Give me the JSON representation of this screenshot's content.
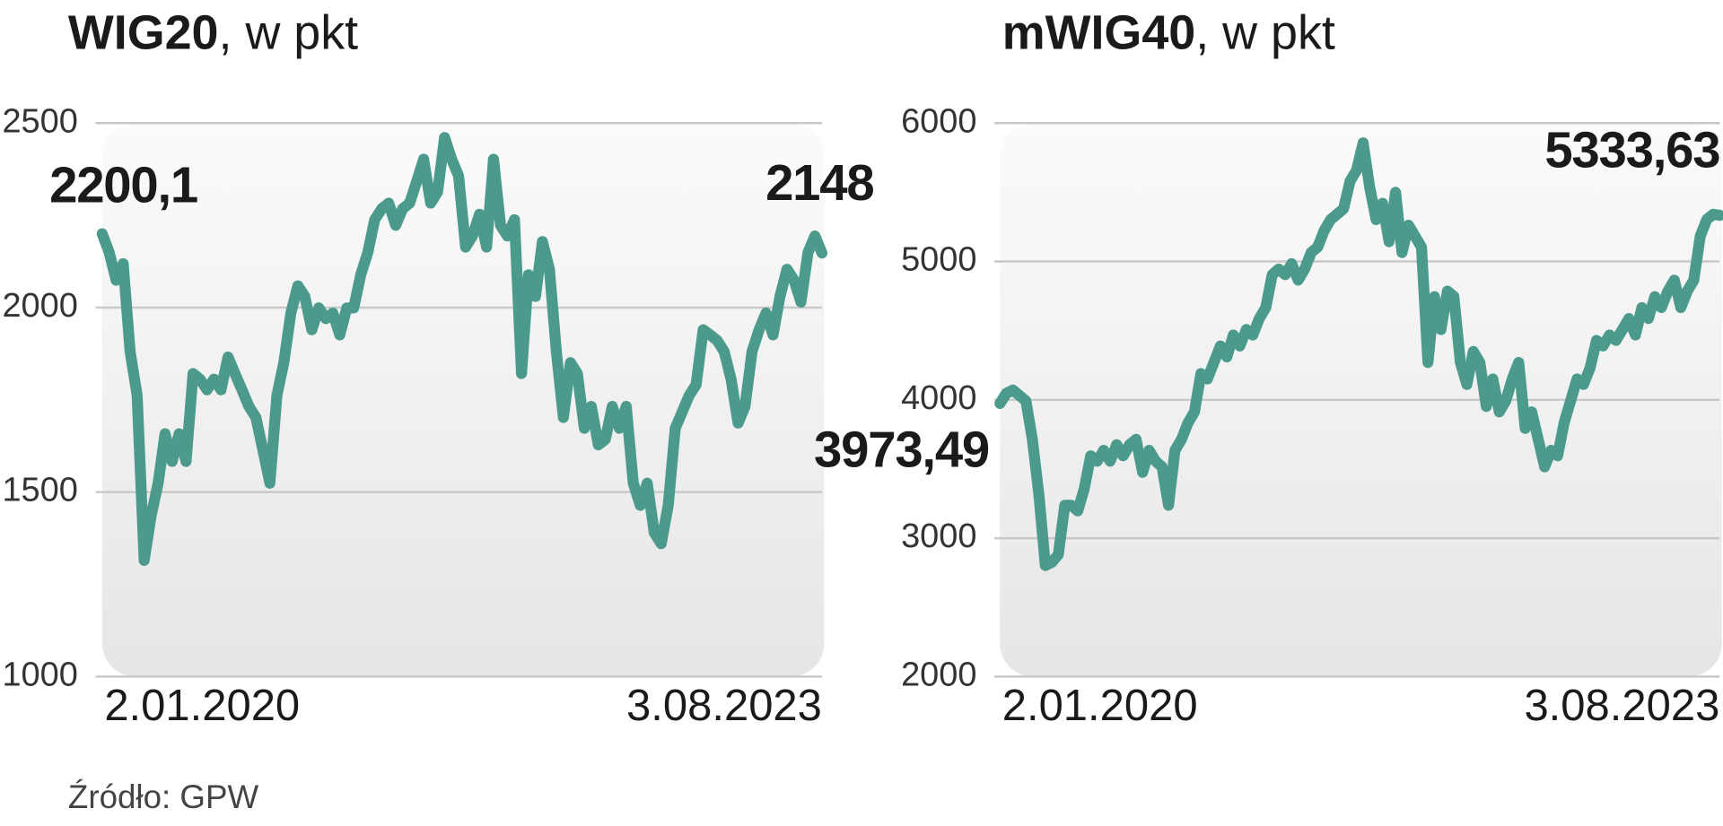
{
  "chart_data": [
    {
      "type": "line",
      "title": "WIG20",
      "title_suffix": ", w pkt",
      "color": "#4c9a8b",
      "grid": true,
      "ylim": [
        1000,
        2500
      ],
      "yticks": [
        1000,
        1500,
        2000,
        2500
      ],
      "categories": [
        "2.01.2020",
        null,
        null,
        null,
        null,
        null,
        null,
        null,
        null,
        null,
        null,
        null,
        null,
        null,
        null,
        null,
        null,
        null,
        null,
        null,
        null,
        null,
        null,
        null,
        null,
        null,
        null,
        null,
        null,
        null,
        null,
        null,
        null,
        null,
        null,
        null,
        null,
        null,
        null,
        null,
        null,
        null,
        null,
        null,
        null,
        null,
        null,
        null,
        null,
        null,
        null,
        null,
        null,
        null,
        null,
        null,
        null,
        null,
        null,
        null,
        null,
        null,
        null,
        null,
        null,
        null,
        null,
        null,
        null,
        null,
        null,
        null,
        null,
        null,
        null,
        null,
        null,
        null,
        null,
        null,
        null,
        null,
        null,
        null,
        null,
        null,
        null,
        null,
        null,
        null,
        null,
        null,
        null,
        null,
        null,
        null,
        null,
        null,
        null,
        null,
        null,
        null,
        null,
        "3.08.2023"
      ],
      "values": [
        2200.1,
        2149,
        2074,
        2119,
        1881,
        1762,
        1315,
        1435,
        1524,
        1658,
        1583,
        1658,
        1583,
        1821,
        1806,
        1777,
        1806,
        1777,
        1866,
        1821,
        1777,
        1732,
        1702,
        1613,
        1524,
        1762,
        1851,
        1985,
        2059,
        2030,
        1940,
        1999,
        1970,
        1985,
        1926,
        1999,
        1999,
        2089,
        2149,
        2238,
        2268,
        2283,
        2223,
        2268,
        2283,
        2342,
        2402,
        2283,
        2313,
        2461,
        2402,
        2357,
        2164,
        2194,
        2253,
        2164,
        2402,
        2223,
        2194,
        2238,
        1821,
        2089,
        2030,
        2179,
        2104,
        1881,
        1702,
        1851,
        1821,
        1673,
        1732,
        1628,
        1643,
        1732,
        1673,
        1732,
        1524,
        1464,
        1524,
        1390,
        1360,
        1464,
        1673,
        1717,
        1762,
        1791,
        1940,
        1926,
        1911,
        1881,
        1806,
        1687,
        1732,
        1881,
        1940,
        1985,
        1926,
        2030,
        2104,
        2074,
        2015,
        2149,
        2194,
        2148
      ],
      "value_labels": [
        "2200,1",
        null,
        null,
        null,
        null,
        null,
        null,
        null,
        null,
        null,
        null,
        null,
        null,
        null,
        null,
        null,
        null,
        null,
        null,
        null,
        null,
        null,
        null,
        null,
        null,
        null,
        null,
        null,
        null,
        null,
        null,
        null,
        null,
        null,
        null,
        null,
        null,
        null,
        null,
        null,
        null,
        null,
        null,
        null,
        null,
        null,
        null,
        null,
        null,
        null,
        null,
        null,
        null,
        null,
        null,
        null,
        null,
        null,
        null,
        null,
        null,
        null,
        null,
        null,
        null,
        null,
        null,
        null,
        null,
        null,
        null,
        null,
        null,
        null,
        null,
        null,
        null,
        null,
        null,
        null,
        null,
        null,
        null,
        null,
        null,
        null,
        null,
        null,
        null,
        null,
        null,
        null,
        null,
        null,
        null,
        null,
        null,
        null,
        null,
        null,
        null,
        null,
        null,
        "2148"
      ]
    },
    {
      "type": "line",
      "title": "mWIG40",
      "title_suffix": ", w pkt",
      "color": "#4c9a8b",
      "grid": true,
      "ylim": [
        2000,
        6000
      ],
      "yticks": [
        2000,
        3000,
        4000,
        5000,
        6000
      ],
      "categories": [
        "2.01.2020",
        null,
        null,
        null,
        null,
        null,
        null,
        null,
        null,
        null,
        null,
        null,
        null,
        null,
        null,
        null,
        null,
        null,
        null,
        null,
        null,
        null,
        null,
        null,
        null,
        null,
        null,
        null,
        null,
        null,
        null,
        null,
        null,
        null,
        null,
        null,
        null,
        null,
        null,
        null,
        null,
        null,
        null,
        null,
        null,
        null,
        null,
        null,
        null,
        null,
        null,
        null,
        null,
        null,
        null,
        null,
        null,
        null,
        null,
        null,
        null,
        null,
        null,
        null,
        null,
        null,
        null,
        null,
        null,
        null,
        null,
        null,
        null,
        null,
        null,
        null,
        null,
        null,
        null,
        null,
        null,
        null,
        null,
        null,
        null,
        null,
        null,
        null,
        null,
        null,
        null,
        null,
        null,
        null,
        null,
        null,
        null,
        null,
        null,
        null,
        null,
        null,
        null,
        null,
        null,
        null,
        null,
        null,
        null,
        null,
        null,
        "3.08.2023"
      ],
      "values": [
        3973.49,
        4048,
        4071,
        4032,
        3992,
        3714,
        3317,
        2802,
        2825,
        2881,
        3238,
        3238,
        3198,
        3357,
        3595,
        3556,
        3635,
        3556,
        3675,
        3595,
        3675,
        3714,
        3476,
        3635,
        3556,
        3516,
        3238,
        3635,
        3714,
        3833,
        3913,
        4190,
        4151,
        4270,
        4389,
        4310,
        4468,
        4389,
        4508,
        4468,
        4587,
        4667,
        4905,
        4945,
        4905,
        4984,
        4865,
        4945,
        5064,
        5103,
        5222,
        5302,
        5341,
        5381,
        5580,
        5659,
        5857,
        5540,
        5302,
        5421,
        5143,
        5500,
        5064,
        5262,
        5183,
        5103,
        4270,
        4746,
        4508,
        4786,
        4746,
        4270,
        4111,
        4349,
        4270,
        3952,
        4151,
        3913,
        3992,
        4151,
        4270,
        3794,
        3913,
        3714,
        3516,
        3635,
        3595,
        3833,
        3992,
        4151,
        4111,
        4230,
        4429,
        4389,
        4468,
        4429,
        4508,
        4587,
        4468,
        4667,
        4587,
        4746,
        4667,
        4786,
        4865,
        4667,
        4786,
        4865,
        5183,
        5302,
        5341,
        5333.63
      ],
      "value_labels": [
        "3973,49",
        null,
        null,
        null,
        null,
        null,
        null,
        null,
        null,
        null,
        null,
        null,
        null,
        null,
        null,
        null,
        null,
        null,
        null,
        null,
        null,
        null,
        null,
        null,
        null,
        null,
        null,
        null,
        null,
        null,
        null,
        null,
        null,
        null,
        null,
        null,
        null,
        null,
        null,
        null,
        null,
        null,
        null,
        null,
        null,
        null,
        null,
        null,
        null,
        null,
        null,
        null,
        null,
        null,
        null,
        null,
        null,
        null,
        null,
        null,
        null,
        null,
        null,
        null,
        null,
        null,
        null,
        null,
        null,
        null,
        null,
        null,
        null,
        null,
        null,
        null,
        null,
        null,
        null,
        null,
        null,
        null,
        null,
        null,
        null,
        null,
        null,
        null,
        null,
        null,
        null,
        null,
        null,
        null,
        null,
        null,
        null,
        null,
        null,
        null,
        null,
        null,
        null,
        null,
        null,
        null,
        null,
        null,
        null,
        null,
        null,
        "5333,63"
      ]
    }
  ],
  "source": "Źródło: GPW"
}
